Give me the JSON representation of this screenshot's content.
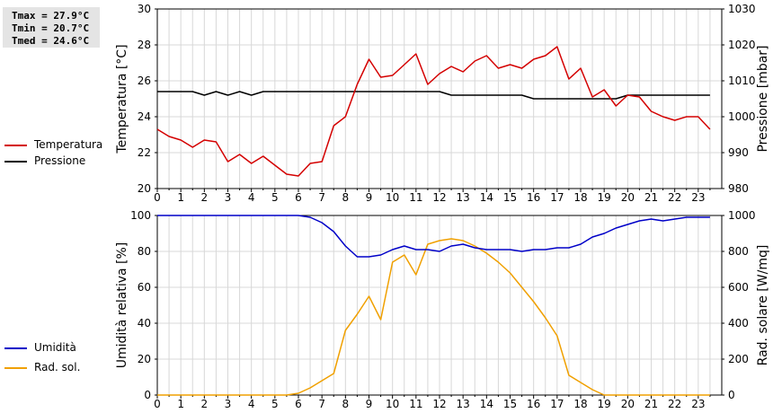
{
  "stats": {
    "tmax": "Tmax = 27.9°C",
    "tmin": "Tmin = 20.7°C",
    "tmed": "Tmed = 24.6°C"
  },
  "colors": {
    "temperature": "#d40000",
    "pressure": "#000000",
    "humidity": "#0000c8",
    "radiation": "#f0a000",
    "grid": "#d8d8d8"
  },
  "legend_top": [
    {
      "label": "Temperatura",
      "color": "#d40000"
    },
    {
      "label": "Pressione",
      "color": "#000000"
    }
  ],
  "legend_bottom": [
    {
      "label": "Umidità",
      "color": "#0000c8"
    },
    {
      "label": "Rad. sol.",
      "color": "#f0a000"
    }
  ],
  "x_tick_labels": [
    "0",
    "1",
    "2",
    "3",
    "4",
    "5",
    "6",
    "7",
    "8",
    "9",
    "10",
    "11",
    "12",
    "13",
    "14",
    "15",
    "16",
    "17",
    "18",
    "19",
    "20",
    "21",
    "22",
    "23"
  ],
  "chart_data": [
    {
      "type": "line",
      "name": "top",
      "x": [
        0,
        0.5,
        1,
        1.5,
        2,
        2.5,
        3,
        3.5,
        4,
        4.5,
        5,
        5.5,
        6,
        6.5,
        7,
        7.5,
        8,
        8.5,
        9,
        9.5,
        10,
        10.5,
        11,
        11.5,
        12,
        12.5,
        13,
        13.5,
        14,
        14.5,
        15,
        15.5,
        16,
        16.5,
        17,
        17.5,
        18,
        18.5,
        19,
        19.5,
        20,
        20.5,
        21,
        21.5,
        22,
        22.5,
        23,
        23.5
      ],
      "xlim": [
        0,
        24
      ],
      "ylabel": "Temperatura [°C]",
      "ylabel_right": "Pressione [mbar]",
      "ylim": [
        20,
        30
      ],
      "ylim_right": [
        980,
        1030
      ],
      "y_ticks": [
        20,
        22,
        24,
        26,
        28,
        30
      ],
      "y_ticks_right": [
        980,
        990,
        1000,
        1010,
        1020,
        1030
      ],
      "grid": true,
      "legend": "left",
      "series": [
        {
          "name": "Temperatura",
          "axis": "left",
          "values": [
            23.3,
            22.9,
            22.7,
            22.3,
            22.7,
            22.6,
            21.5,
            21.9,
            21.4,
            21.8,
            21.3,
            20.8,
            20.7,
            21.4,
            21.5,
            23.5,
            24.0,
            25.8,
            27.2,
            26.2,
            26.3,
            26.9,
            27.5,
            25.8,
            26.4,
            26.8,
            26.5,
            27.1,
            27.4,
            26.7,
            26.9,
            26.7,
            27.2,
            27.4,
            27.9,
            26.1,
            26.7,
            25.1,
            25.5,
            24.6,
            25.2,
            25.1,
            24.3,
            24.0,
            23.8,
            24.0,
            24.0,
            23.3
          ]
        },
        {
          "name": "Pressione",
          "axis": "right",
          "values": [
            1007,
            1007,
            1007,
            1007,
            1006,
            1007,
            1006,
            1007,
            1006,
            1007,
            1007,
            1007,
            1007,
            1007,
            1007,
            1007,
            1007,
            1007,
            1007,
            1007,
            1007,
            1007,
            1007,
            1007,
            1007,
            1006,
            1006,
            1006,
            1006,
            1006,
            1006,
            1006,
            1005,
            1005,
            1005,
            1005,
            1005,
            1005,
            1005,
            1005,
            1006,
            1006,
            1006,
            1006,
            1006,
            1006,
            1006,
            1006
          ]
        }
      ]
    },
    {
      "type": "line",
      "name": "bottom",
      "x": [
        0,
        0.5,
        1,
        1.5,
        2,
        2.5,
        3,
        3.5,
        4,
        4.5,
        5,
        5.5,
        6,
        6.5,
        7,
        7.5,
        8,
        8.5,
        9,
        9.5,
        10,
        10.5,
        11,
        11.5,
        12,
        12.5,
        13,
        13.5,
        14,
        14.5,
        15,
        15.5,
        16,
        16.5,
        17,
        17.5,
        18,
        18.5,
        19,
        19.5,
        20,
        20.5,
        21,
        21.5,
        22,
        22.5,
        23,
        23.5
      ],
      "xlim": [
        0,
        24
      ],
      "ylabel": "Umidità relativa [%]",
      "ylabel_right": "Rad. solare [W/mq]",
      "ylim": [
        0,
        100
      ],
      "ylim_right": [
        0,
        1000
      ],
      "y_ticks": [
        0,
        20,
        40,
        60,
        80,
        100
      ],
      "y_ticks_right": [
        0,
        200,
        400,
        600,
        800,
        1000
      ],
      "grid": true,
      "legend": "left",
      "series": [
        {
          "name": "Umidità",
          "axis": "left",
          "values": [
            100,
            100,
            100,
            100,
            100,
            100,
            100,
            100,
            100,
            100,
            100,
            100,
            100,
            99,
            96,
            91,
            83,
            77,
            77,
            78,
            81,
            83,
            81,
            81,
            80,
            83,
            84,
            82,
            81,
            81,
            81,
            80,
            81,
            81,
            82,
            82,
            84,
            88,
            90,
            93,
            95,
            97,
            98,
            97,
            98,
            99,
            99,
            99
          ]
        },
        {
          "name": "Rad. sol.",
          "axis": "right",
          "values": [
            0,
            0,
            0,
            0,
            0,
            0,
            0,
            0,
            0,
            0,
            0,
            0,
            10,
            40,
            80,
            120,
            360,
            450,
            550,
            420,
            740,
            780,
            670,
            840,
            860,
            870,
            860,
            830,
            790,
            740,
            680,
            600,
            520,
            430,
            330,
            110,
            70,
            30,
            0,
            0,
            0,
            0,
            0,
            0,
            0,
            0,
            0,
            0
          ]
        }
      ]
    }
  ]
}
